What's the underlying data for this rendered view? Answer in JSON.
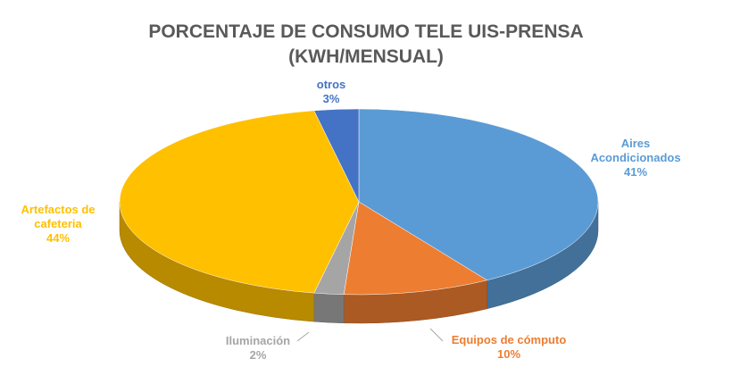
{
  "chart_data": {
    "type": "pie3d",
    "title": "PORCENTAJE DE CONSUMO TELE UIS-PRENSA (KWH/MENSUAL)",
    "categories": [
      "Aires Acondicionados",
      "Equipos de cómputo",
      "Iluminación",
      "Artefactos de cafeteria",
      "otros"
    ],
    "values": [
      41,
      10,
      2,
      44,
      3
    ],
    "value_labels": [
      "41%",
      "10%",
      "2%",
      "44%",
      "3%"
    ],
    "colors": [
      "#5b9bd5",
      "#ed7d31",
      "#a5a5a5",
      "#ffc000",
      "#4472c4"
    ]
  }
}
